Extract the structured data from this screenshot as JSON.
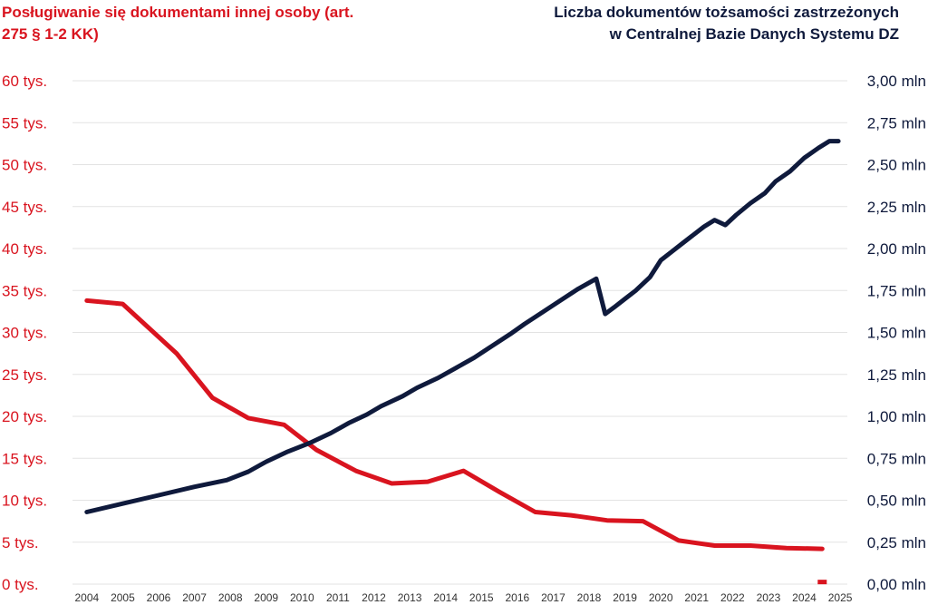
{
  "titles": {
    "left": "Posługiwanie się dokumentami innej osoby (art. 275 § 1-2 KK)",
    "right_line1": "Liczba dokumentów tożsamości zastrzeżonych",
    "right_line2": "w Centralnej Bazie Danych Systemu DZ"
  },
  "colors": {
    "left_series": "#d9141f",
    "right_series": "#0f1a3c",
    "grid": "#e3e3e3"
  },
  "chart_data": {
    "type": "line",
    "grid": true,
    "x_ticks": [
      "2004",
      "2005",
      "2006",
      "2007",
      "2008",
      "2009",
      "2010",
      "2011",
      "2012",
      "2013",
      "2014",
      "2015",
      "2016",
      "2017",
      "2018",
      "2019",
      "2020",
      "2021",
      "2022",
      "2023",
      "2024",
      "2025"
    ],
    "y_left": {
      "range": [
        0,
        60
      ],
      "ticks": [
        0,
        5,
        10,
        15,
        20,
        25,
        30,
        35,
        40,
        45,
        50,
        55,
        60
      ],
      "tick_labels": [
        "0 tys.",
        "5 tys.",
        "10 tys.",
        "15 tys.",
        "20 tys.",
        "25 tys.",
        "30 tys.",
        "35 tys.",
        "40 tys.",
        "45 tys.",
        "50 tys.",
        "55 tys.",
        "60 tys."
      ]
    },
    "y_right": {
      "range": [
        0,
        3.0
      ],
      "ticks": [
        0,
        0.25,
        0.5,
        0.75,
        1.0,
        1.25,
        1.5,
        1.75,
        2.0,
        2.25,
        2.5,
        2.75,
        3.0
      ],
      "tick_labels": [
        "0,00 mln",
        "0,25 mln",
        "0,50 mln",
        "0,75 mln",
        "1,00 mln",
        "1,25 mln",
        "1,50 mln",
        "1,75 mln",
        "2,00 mln",
        "2,25 mln",
        "2,50 mln",
        "2,75 mln",
        "3,00 mln"
      ]
    },
    "series": [
      {
        "axis": "left",
        "x": [
          2004.0,
          2005.0,
          2006.5,
          2007.5,
          2008.5,
          2009.5,
          2010.4,
          2011.5,
          2012.5,
          2013.5,
          2014.5,
          2015.5,
          2016.5,
          2017.5,
          2018.5,
          2019.5,
          2020.5,
          2021.5,
          2022.5,
          2023.5,
          2024.5
        ],
        "y": [
          33.8,
          33.4,
          27.5,
          22.2,
          19.8,
          19.0,
          16.0,
          13.5,
          12.0,
          12.2,
          13.5,
          11.0,
          8.6,
          8.2,
          7.6,
          7.5,
          5.2,
          4.6,
          4.6,
          4.3,
          4.2
        ]
      },
      {
        "axis": "left",
        "x": [
          2024.5
        ],
        "y": [
          0.2
        ]
      },
      {
        "axis": "right",
        "x": [
          2004.0,
          2005.0,
          2006.0,
          2007.0,
          2007.9,
          2008.5,
          2009.0,
          2009.6,
          2010.2,
          2010.8,
          2011.3,
          2011.8,
          2012.2,
          2012.8,
          2013.2,
          2013.8,
          2014.3,
          2014.8,
          2015.3,
          2015.8,
          2016.2,
          2016.7,
          2017.2,
          2017.7,
          2018.2,
          2018.45,
          2018.7,
          2019.0,
          2019.3,
          2019.7,
          2020.0,
          2020.3,
          2020.6,
          2020.9,
          2021.2,
          2021.5,
          2021.8,
          2022.1,
          2022.5,
          2022.9,
          2023.2,
          2023.6,
          2024.0,
          2024.4,
          2024.7,
          2024.95
        ],
        "y": [
          0.43,
          0.48,
          0.53,
          0.58,
          0.62,
          0.67,
          0.73,
          0.79,
          0.84,
          0.9,
          0.96,
          1.01,
          1.06,
          1.12,
          1.17,
          1.23,
          1.29,
          1.35,
          1.42,
          1.49,
          1.55,
          1.62,
          1.69,
          1.76,
          1.82,
          1.61,
          1.65,
          1.7,
          1.75,
          1.83,
          1.93,
          1.98,
          2.03,
          2.08,
          2.13,
          2.17,
          2.14,
          2.2,
          2.27,
          2.33,
          2.4,
          2.46,
          2.54,
          2.6,
          2.64,
          2.64
        ]
      }
    ]
  }
}
